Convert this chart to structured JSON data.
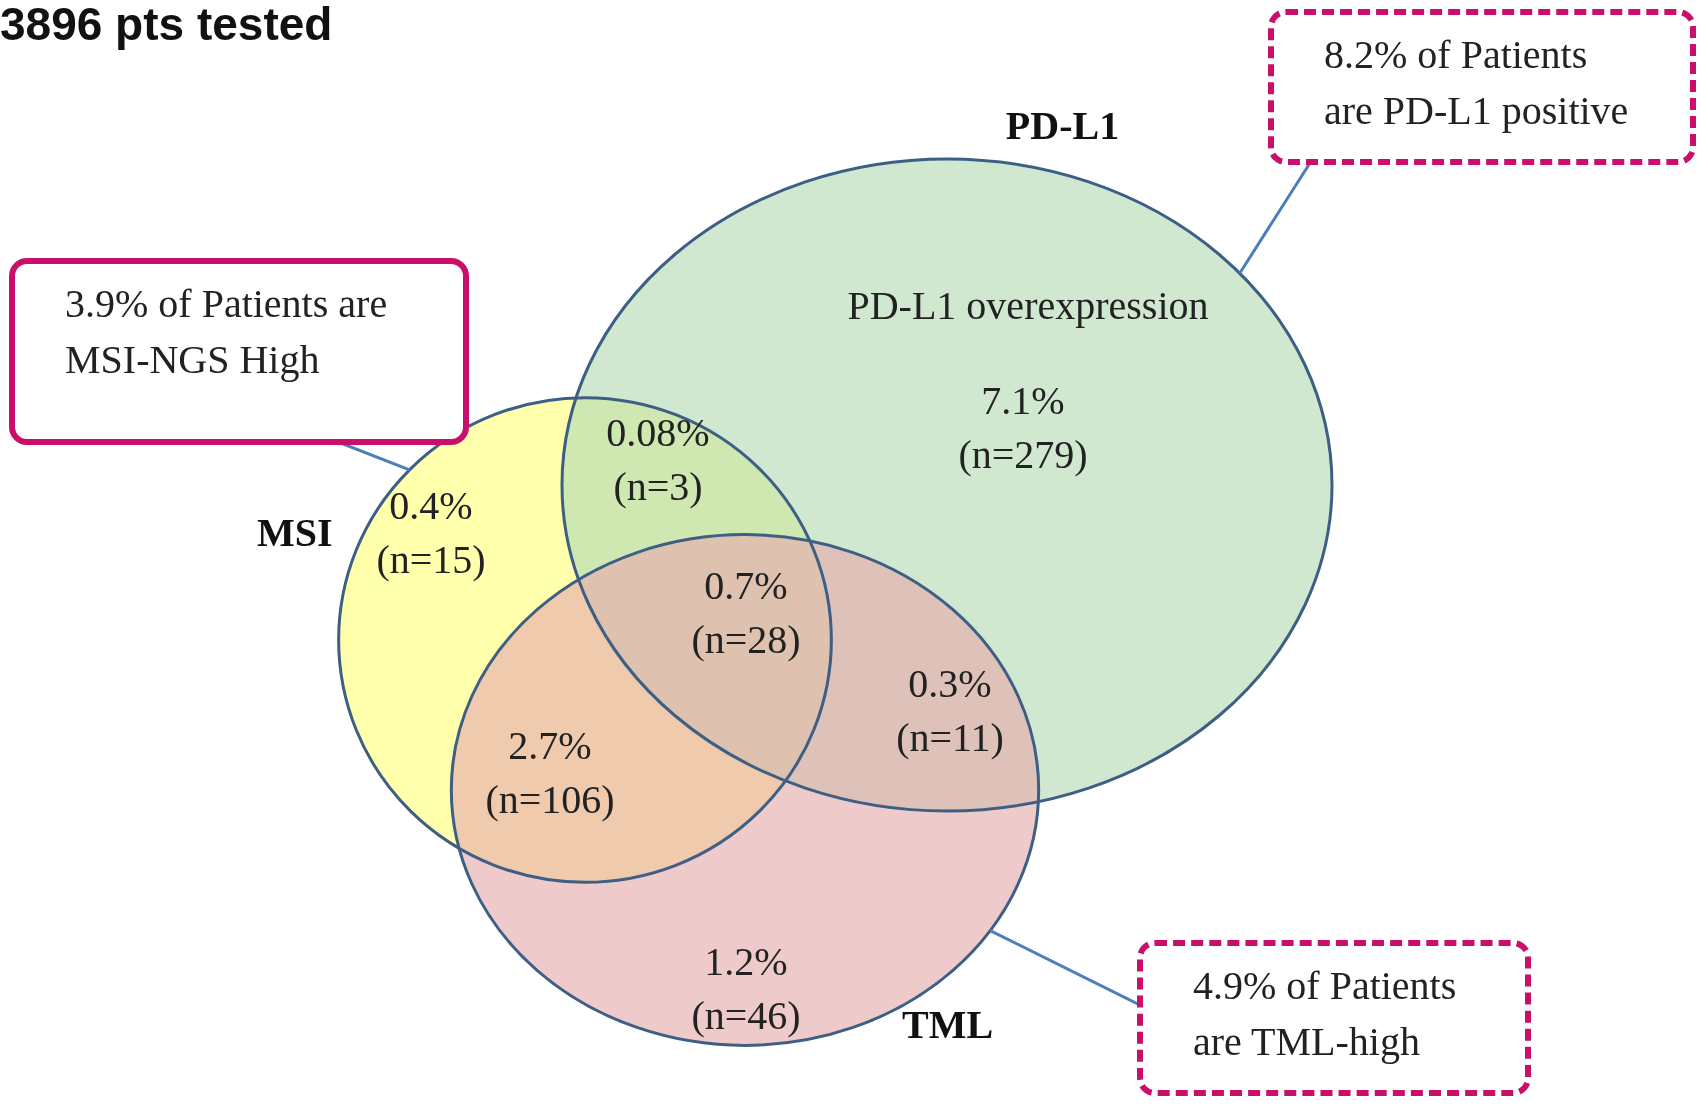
{
  "chart_data": {
    "type": "other",
    "title": "3896 pts tested",
    "categories": [
      "MSI",
      "PD-L1",
      "TML"
    ],
    "values": [
      3.9,
      8.2,
      4.9
    ],
    "value_labels": [
      "3.9% of Patients are\nMSI-NGS High",
      "8.2% of Patients\nare PD-L1 positive",
      "4.9% of Patients\nare TML-high"
    ],
    "annotations": [
      "PD-L1 overexpression",
      "7.1%\n(n=279)",
      "0.08%\n(n=3)",
      "0.4%\n(n=15)",
      "0.7%\n(n=28)",
      "0.3%\n(n=11)",
      "2.7%\n(n=106)",
      "1.2%\n(n=46)"
    ]
  }
}
